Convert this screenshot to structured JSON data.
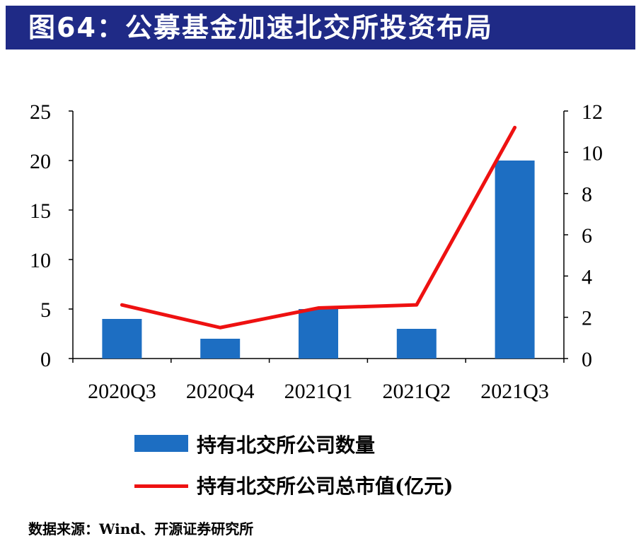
{
  "header": {
    "title": "图64：公募基金加速北交所投资布局"
  },
  "chart_data": {
    "type": "bar",
    "categories": [
      "2020Q3",
      "2020Q4",
      "2021Q1",
      "2021Q2",
      "2021Q3"
    ],
    "series": [
      {
        "name": "持有北交所公司数量",
        "type": "bar",
        "axis": "left",
        "values": [
          4,
          2,
          5,
          3,
          20
        ],
        "color": "#1d6ec2"
      },
      {
        "name": "持有北交所公司总市值(亿元)",
        "type": "line",
        "axis": "right",
        "values": [
          2.6,
          1.5,
          2.45,
          2.6,
          11.2
        ],
        "color": "#ee1111"
      }
    ],
    "left_axis": {
      "ylim": [
        0,
        25
      ],
      "ticks": [
        "0",
        "5",
        "10",
        "15",
        "20",
        "25"
      ]
    },
    "right_axis": {
      "ylim": [
        0,
        12
      ],
      "ticks": [
        "0",
        "2",
        "4",
        "6",
        "8",
        "10",
        "12"
      ]
    },
    "grid": false,
    "legend_position": "bottom"
  },
  "source": {
    "text": "数据来源：Wind、开源证券研究所"
  }
}
